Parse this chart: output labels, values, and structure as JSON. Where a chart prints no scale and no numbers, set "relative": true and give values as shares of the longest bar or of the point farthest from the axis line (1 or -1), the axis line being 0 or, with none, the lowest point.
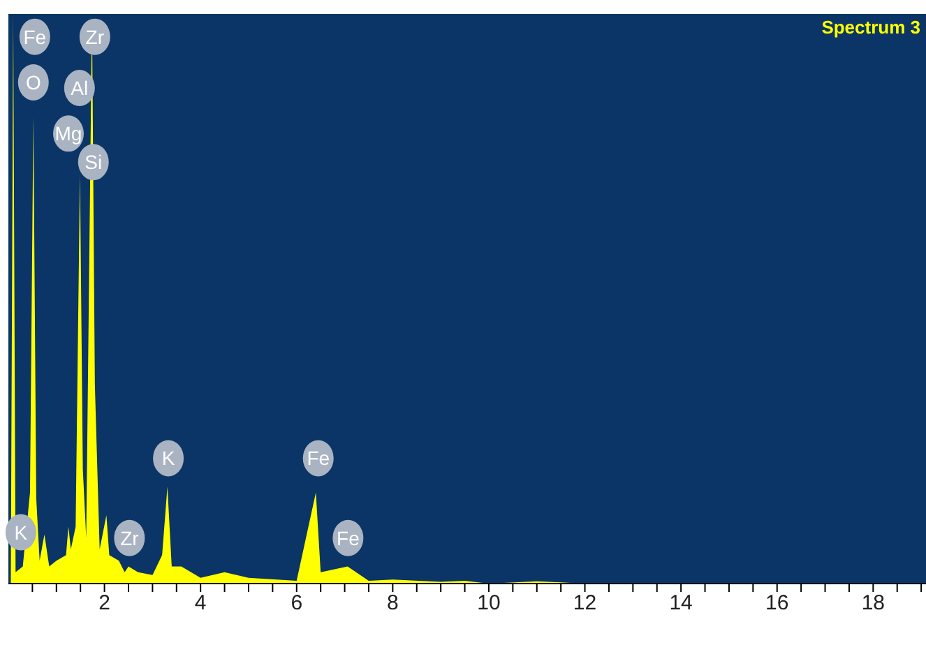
{
  "chart_data": {
    "type": "area",
    "relative": true,
    "color": "#ffff00",
    "x": [
      0.05,
      0.1,
      0.15,
      0.3,
      0.45,
      0.52,
      0.58,
      0.65,
      0.75,
      0.85,
      1.0,
      1.2,
      1.25,
      1.3,
      1.4,
      1.49,
      1.55,
      1.62,
      1.74,
      1.8,
      1.9,
      2.04,
      2.1,
      2.3,
      2.42,
      2.5,
      2.7,
      3.0,
      3.2,
      3.31,
      3.4,
      3.6,
      4.0,
      4.5,
      5.0,
      6.0,
      6.4,
      6.5,
      7.06,
      7.5,
      8.0,
      9.0,
      9.5,
      10.0,
      11.0,
      11.5,
      12.0,
      19.0
    ],
    "values": [
      0,
      1.0,
      0.02,
      0.03,
      0.16,
      0.82,
      0.15,
      0.04,
      0.086,
      0.03,
      0.04,
      0.05,
      0.1,
      0.06,
      0.1,
      0.72,
      0.2,
      0.08,
      1.0,
      0.35,
      0.06,
      0.12,
      0.05,
      0.04,
      0.02,
      0.03,
      0.02,
      0.015,
      0.05,
      0.17,
      0.03,
      0.03,
      0.01,
      0.02,
      0.01,
      0.005,
      0.16,
      0.02,
      0.03,
      0.005,
      0.007,
      0.003,
      0.005,
      0,
      0.004,
      0.002,
      0,
      0
    ],
    "xlim": [
      0,
      19.1
    ],
    "xticks": [
      {
        "value": 0.5,
        "label": null
      },
      {
        "value": 1,
        "label": null
      },
      {
        "value": 1.5,
        "label": null
      },
      2,
      {
        "value": 2.5,
        "label": null
      },
      {
        "value": 3,
        "label": null
      },
      {
        "value": 3.5,
        "label": null
      },
      4,
      {
        "value": 4.5,
        "label": null
      },
      {
        "value": 5,
        "label": null
      },
      {
        "value": 5.5,
        "label": null
      },
      6,
      {
        "value": 6.5,
        "label": null
      },
      {
        "value": 7,
        "label": null
      },
      {
        "value": 7.5,
        "label": null
      },
      8,
      {
        "value": 8.5,
        "label": null
      },
      {
        "value": 9,
        "label": null
      },
      {
        "value": 9.5,
        "label": null
      },
      10,
      {
        "value": 10.5,
        "label": null
      },
      {
        "value": 11,
        "label": null
      },
      {
        "value": 11.5,
        "label": null
      },
      12,
      {
        "value": 12.5,
        "label": null
      },
      {
        "value": 13,
        "label": null
      },
      {
        "value": 13.5,
        "label": null
      },
      14,
      {
        "value": 14.5,
        "label": null
      },
      {
        "value": 15,
        "label": null
      },
      {
        "value": 15.5,
        "label": null
      },
      16,
      {
        "value": 16.5,
        "label": null
      },
      {
        "value": 17,
        "label": null
      },
      {
        "value": 17.5,
        "label": null
      },
      18,
      {
        "value": 18.5,
        "label": null
      },
      {
        "value": 19,
        "label": null
      }
    ],
    "annotations": [
      "Spectrum 3",
      {
        "text": "Fe",
        "x": 0.55,
        "y": 0.96
      },
      {
        "text": "O",
        "x": 0.52,
        "y": 0.88
      },
      {
        "text": "Zr",
        "x": 1.8,
        "y": 0.96
      },
      {
        "text": "Al",
        "x": 1.48,
        "y": 0.87
      },
      {
        "text": "Mg",
        "x": 1.25,
        "y": 0.79
      },
      {
        "text": "Si",
        "x": 1.77,
        "y": 0.74
      },
      {
        "text": "K",
        "x": 0.26,
        "y": 0.09
      },
      {
        "text": "Zr",
        "x": 2.52,
        "y": 0.08
      },
      {
        "text": "K",
        "x": 3.33,
        "y": 0.22
      },
      {
        "text": "Fe",
        "x": 6.45,
        "y": 0.22
      },
      {
        "text": "Fe",
        "x": 7.07,
        "y": 0.08
      }
    ]
  }
}
